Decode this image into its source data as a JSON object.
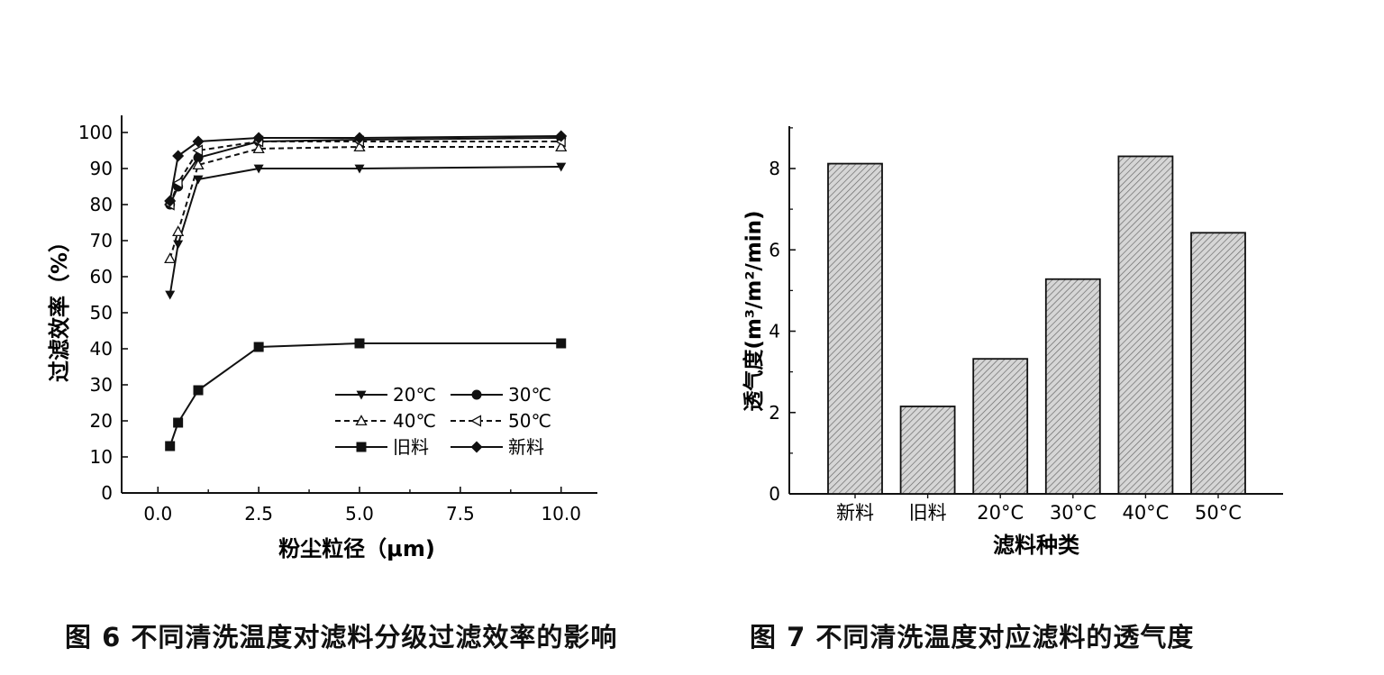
{
  "figures": [
    {
      "caption": "图 6 不同清洗温度对滤料分级过滤效率的影响"
    },
    {
      "caption": "图 7 不同清洗温度对应滤料的透气度"
    }
  ],
  "chart_data": [
    {
      "type": "line",
      "title": "",
      "xlabel": "粉尘粒径（μm)",
      "ylabel": "过滤效率（%）",
      "xlim": [
        -0.9,
        10.9
      ],
      "ylim": [
        0,
        100
      ],
      "xticks": [
        "0.0",
        "2.5",
        "5.0",
        "7.5",
        "10.0"
      ],
      "xtick_values": [
        0,
        2.5,
        5,
        7.5,
        10
      ],
      "yticks": [
        "0",
        "10",
        "20",
        "30",
        "40",
        "50",
        "60",
        "70",
        "80",
        "90",
        "100"
      ],
      "ytick_values": [
        0,
        10,
        20,
        30,
        40,
        50,
        60,
        70,
        80,
        90,
        100
      ],
      "grid": false,
      "legend_position": "bottom-right",
      "x": [
        0.3,
        0.5,
        1.0,
        2.5,
        5.0,
        10.0
      ],
      "series": [
        {
          "name": "20℃",
          "marker": "triangle-down",
          "dashed": false,
          "values": [
            55,
            69,
            87,
            90,
            90,
            90.5
          ]
        },
        {
          "name": "30℃",
          "marker": "circle",
          "dashed": false,
          "values": [
            80,
            85,
            93,
            97.5,
            98,
            98.5
          ]
        },
        {
          "name": "40℃",
          "marker": "triangle-up-open",
          "dashed": true,
          "values": [
            65,
            72.5,
            91,
            95.5,
            96,
            96
          ]
        },
        {
          "name": "50℃",
          "marker": "triangle-left-open",
          "dashed": true,
          "values": [
            80,
            86,
            95,
            97.5,
            97.5,
            97.5
          ]
        },
        {
          "name": "旧料",
          "marker": "square",
          "dashed": false,
          "values": [
            13,
            19.5,
            28.5,
            40.5,
            41.5,
            41.5
          ]
        },
        {
          "name": "新料",
          "marker": "diamond",
          "dashed": false,
          "values": [
            81,
            93.5,
            97.5,
            98.5,
            98.5,
            99
          ]
        }
      ]
    },
    {
      "type": "bar",
      "title": "",
      "xlabel": "滤料种类",
      "ylabel": "透气度(m³/m²/min)",
      "ylim": [
        0,
        9
      ],
      "yticks": [
        "0",
        "2",
        "4",
        "6",
        "8"
      ],
      "ytick_values": [
        0,
        2,
        4,
        6,
        8
      ],
      "grid": false,
      "categories": [
        "新料",
        "旧料",
        "20°C",
        "30°C",
        "40°C",
        "50°C"
      ],
      "values": [
        8.12,
        2.15,
        3.32,
        5.28,
        8.3,
        6.42
      ],
      "bar_fill": "hatched gray"
    }
  ]
}
